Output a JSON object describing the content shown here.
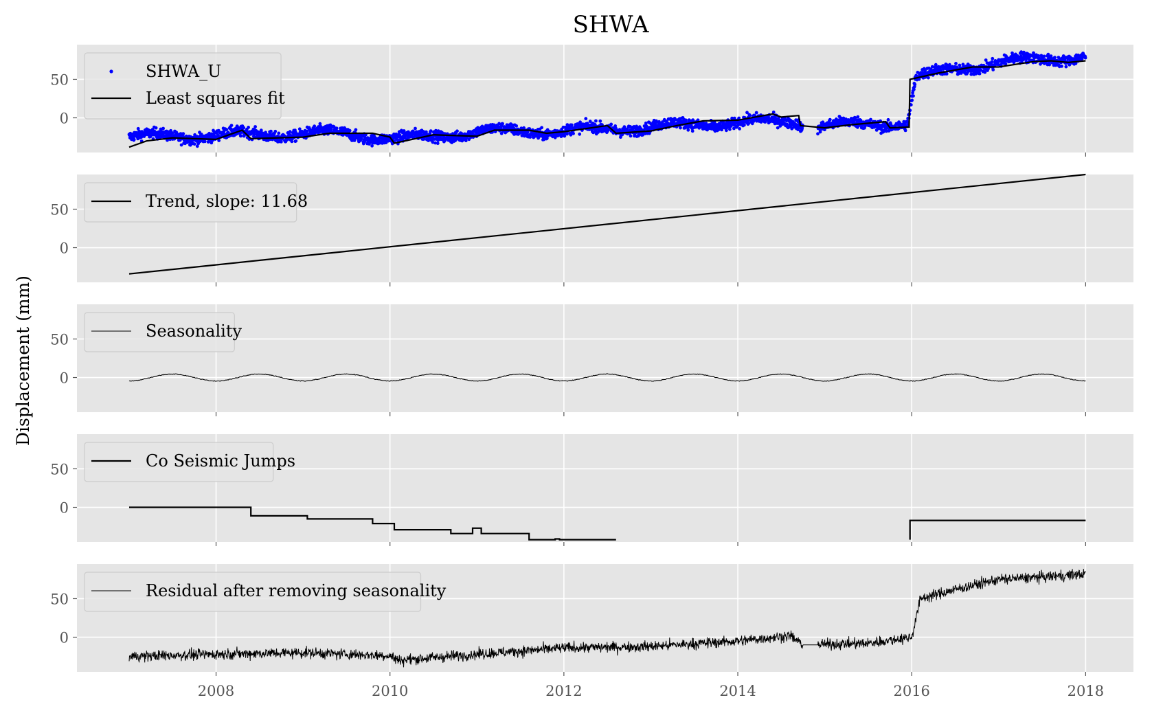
{
  "chart_data": {
    "type": "line",
    "title": "SHWA",
    "ylabel": "Displacement (mm)",
    "xlabel": "",
    "x_axis": {
      "range": [
        2006.4,
        2018.55
      ],
      "ticks": [
        2008,
        2010,
        2012,
        2014,
        2016,
        2018
      ],
      "tick_labels": [
        "2008",
        "2010",
        "2012",
        "2014",
        "2016",
        "2018"
      ],
      "shared": true
    },
    "y_axis": {
      "range": [
        -45,
        95
      ],
      "ticks": [
        0,
        50
      ],
      "tick_labels": [
        "0",
        "50"
      ]
    },
    "grid": true,
    "style": "ggplot",
    "panels": [
      {
        "key": "observed",
        "legend_placement": "upper-left",
        "series": [
          {
            "name": "SHWA_U",
            "kind": "scatter",
            "color": "#0000ff",
            "description_points": [
              [
                2007.0,
                -25
              ],
              [
                2008.4,
                -22
              ],
              [
                2009.5,
                -20
              ],
              [
                2010.1,
                -28
              ],
              [
                2011.0,
                -18
              ],
              [
                2012.0,
                -17
              ],
              [
                2013.0,
                -12
              ],
              [
                2014.0,
                -6
              ],
              [
                2014.7,
                -4
              ],
              [
                2014.75,
                -12
              ],
              [
                2015.5,
                -8
              ],
              [
                2015.95,
                -7
              ],
              [
                2016.05,
                52
              ],
              [
                2016.5,
                63
              ],
              [
                2017.0,
                72
              ],
              [
                2017.5,
                76
              ],
              [
                2018.0,
                80
              ]
            ]
          },
          {
            "name": "Least squares fit",
            "kind": "line",
            "color": "#000000",
            "points": [
              [
                2007.0,
                -38
              ],
              [
                2007.2,
                -30
              ],
              [
                2007.5,
                -26
              ],
              [
                2008.0,
                -28
              ],
              [
                2008.3,
                -16
              ],
              [
                2008.4,
                -27
              ],
              [
                2009.0,
                -25
              ],
              [
                2009.3,
                -20
              ],
              [
                2009.8,
                -20
              ],
              [
                2010.0,
                -25
              ],
              [
                2010.05,
                -33
              ],
              [
                2010.5,
                -22
              ],
              [
                2011.0,
                -24
              ],
              [
                2011.2,
                -16
              ],
              [
                2011.6,
                -16
              ],
              [
                2011.8,
                -20
              ],
              [
                2012.0,
                -18
              ],
              [
                2012.5,
                -10
              ],
              [
                2012.6,
                -20
              ],
              [
                2013.0,
                -17
              ],
              [
                2013.3,
                -10
              ],
              [
                2013.6,
                -4
              ],
              [
                2014.0,
                -3
              ],
              [
                2014.4,
                5
              ],
              [
                2014.5,
                1
              ],
              [
                2014.7,
                3
              ],
              [
                2014.72,
                -10
              ],
              [
                2015.0,
                -13
              ],
              [
                2015.3,
                -9
              ],
              [
                2015.7,
                -5
              ],
              [
                2015.75,
                -13
              ],
              [
                2015.97,
                -12
              ],
              [
                2015.98,
                50
              ],
              [
                2016.3,
                58
              ],
              [
                2016.7,
                66
              ],
              [
                2017.0,
                66
              ],
              [
                2017.4,
                73
              ],
              [
                2017.6,
                74
              ],
              [
                2017.8,
                72
              ],
              [
                2018.0,
                74
              ]
            ]
          }
        ]
      },
      {
        "key": "trend",
        "legend_placement": "upper-left",
        "series": [
          {
            "name": "Trend, slope: 11.68",
            "kind": "line",
            "color": "#000000",
            "points": [
              [
                2007.0,
                -34
              ],
              [
                2018.0,
                95
              ]
            ]
          }
        ]
      },
      {
        "key": "seasonality",
        "legend_placement": "upper-left",
        "series": [
          {
            "name": "Seasonality",
            "kind": "line",
            "color": "#000000",
            "amplitude": 4.5,
            "period_years": 1.0,
            "x_range": [
              2007.0,
              2018.0
            ]
          }
        ]
      },
      {
        "key": "jumps",
        "legend_placement": "upper-left",
        "series": [
          {
            "name": "Co Seismic Jumps",
            "kind": "step",
            "color": "#000000",
            "points": [
              [
                2007.0,
                0
              ],
              [
                2008.4,
                0
              ],
              [
                2008.4,
                -11
              ],
              [
                2009.05,
                -11
              ],
              [
                2009.05,
                -15
              ],
              [
                2009.8,
                -15
              ],
              [
                2009.8,
                -21
              ],
              [
                2010.05,
                -21
              ],
              [
                2010.05,
                -29
              ],
              [
                2010.7,
                -29
              ],
              [
                2010.7,
                -34
              ],
              [
                2010.95,
                -34
              ],
              [
                2010.95,
                -27
              ],
              [
                2011.05,
                -27
              ],
              [
                2011.05,
                -34
              ],
              [
                2011.6,
                -34
              ],
              [
                2011.6,
                -42
              ],
              [
                2011.9,
                -42
              ],
              [
                2011.9,
                -41
              ],
              [
                2011.95,
                -41
              ],
              [
                2011.95,
                -42
              ],
              [
                2012.6,
                -42
              ]
            ],
            "points_2": [
              [
                2015.98,
                -42
              ],
              [
                2015.98,
                -17
              ],
              [
                2018.0,
                -17
              ]
            ]
          }
        ]
      },
      {
        "key": "residual",
        "legend_placement": "upper-left",
        "series": [
          {
            "name": "Residual after removing seasonality",
            "kind": "line",
            "color": "#000000",
            "description_points": [
              [
                2007.0,
                -25
              ],
              [
                2008.0,
                -22
              ],
              [
                2009.0,
                -20
              ],
              [
                2010.0,
                -24
              ],
              [
                2010.1,
                -30
              ],
              [
                2011.0,
                -22
              ],
              [
                2012.0,
                -14
              ],
              [
                2013.0,
                -12
              ],
              [
                2014.0,
                -5
              ],
              [
                2014.6,
                2
              ],
              [
                2014.75,
                -10
              ],
              [
                2015.5,
                -8
              ],
              [
                2016.0,
                0
              ],
              [
                2016.1,
                50
              ],
              [
                2016.5,
                62
              ],
              [
                2017.0,
                75
              ],
              [
                2017.5,
                78
              ],
              [
                2018.0,
                82
              ]
            ]
          }
        ]
      }
    ]
  }
}
